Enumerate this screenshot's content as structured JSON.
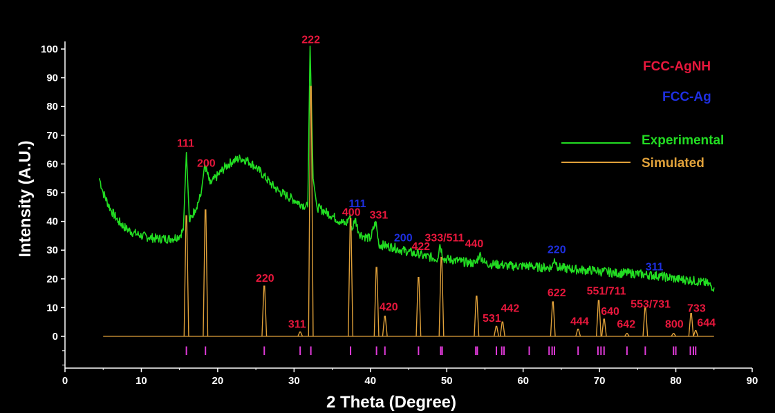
{
  "chart_data": {
    "type": "line",
    "xlabel": "2 Theta (Degree)",
    "ylabel": "Intensity (A.U.)",
    "xlim": [
      0,
      90
    ],
    "ylim": [
      -11,
      100
    ],
    "x_ticks": [
      0,
      10,
      20,
      30,
      40,
      50,
      60,
      70,
      80,
      90
    ],
    "y_ticks": [
      0,
      10,
      20,
      30,
      40,
      50,
      60,
      70,
      80,
      90,
      100
    ],
    "grid": false,
    "legend": {
      "placement": "right",
      "phases": [
        {
          "label": "FCC-AgNH",
          "color": "#e8173c"
        },
        {
          "label": "FCC-Ag",
          "color": "#1e2fe0"
        }
      ],
      "lines": [
        {
          "label": "Experimental",
          "color": "#22dd22"
        },
        {
          "label": "Simulated",
          "color": "#e0a13a"
        }
      ]
    },
    "series": [
      {
        "name": "Experimental",
        "color": "#22dd22",
        "x": [
          4.5,
          5,
          6,
          7,
          8,
          9,
          10,
          11,
          12,
          13,
          14,
          15,
          15.5,
          15.9,
          16.3,
          17,
          17.8,
          18.3,
          19,
          20,
          21,
          22,
          23,
          24,
          25,
          26,
          27,
          28,
          29,
          30,
          31,
          31.8,
          32.1,
          32.5,
          33,
          34,
          35,
          36,
          36.8,
          37.3,
          37.6,
          38,
          38.5,
          39,
          40,
          40.7,
          41.1,
          42,
          43,
          44,
          45,
          46,
          46.3,
          46.8,
          48,
          48.8,
          49.1,
          49.6,
          51,
          52,
          53,
          53.8,
          54.3,
          55,
          56,
          57,
          58,
          59,
          60,
          61,
          62,
          63,
          63.8,
          64.1,
          64.6,
          66,
          68,
          69.5,
          70,
          71,
          72,
          74,
          76,
          78,
          80,
          82,
          84,
          85
        ],
        "y": [
          55,
          50,
          44,
          40,
          37.5,
          36,
          35,
          34.5,
          34,
          34,
          34,
          35,
          37,
          64,
          40,
          44,
          49,
          60,
          53,
          56,
          59,
          61,
          62,
          61,
          59,
          56,
          53,
          50.5,
          49,
          47.5,
          46,
          45,
          101,
          55,
          45,
          43.5,
          42,
          40,
          39,
          42,
          37,
          41,
          36,
          35,
          34,
          40,
          32,
          31.5,
          31,
          30,
          29.5,
          28.5,
          29,
          28,
          27.5,
          27,
          32,
          27,
          26.5,
          26,
          25.5,
          25.5,
          28.5,
          25.5,
          25,
          25,
          24.5,
          24.5,
          24.5,
          24.5,
          24,
          24,
          24,
          27,
          24,
          23.5,
          23,
          23,
          22.5,
          22.5,
          22,
          22,
          21.5,
          21,
          20,
          19.5,
          18.5,
          17
        ]
      },
      {
        "name": "Simulated",
        "color": "#e0a13a",
        "baseline": 0,
        "x": [
          15.9,
          18.4,
          26.1,
          30.8,
          32.2,
          37.4,
          40.8,
          41.9,
          46.3,
          49.3,
          53.9,
          56.5,
          57.3,
          63.9,
          67.2,
          69.9,
          70.6,
          73.6,
          76.0,
          79.7,
          82.0,
          82.6
        ],
        "y": [
          42,
          44,
          17.5,
          1.5,
          87,
          41,
          24,
          7,
          20.5,
          27.5,
          14,
          3.5,
          5,
          12,
          2.5,
          12.5,
          6,
          1,
          10,
          1,
          8,
          2
        ]
      }
    ],
    "tick_mark_positions": [
      15.9,
      18.4,
      26.1,
      30.8,
      32.2,
      37.4,
      40.8,
      41.9,
      46.3,
      49.2,
      49.4,
      53.8,
      54.0,
      56.5,
      57.2,
      57.5,
      60.8,
      63.4,
      63.8,
      64.1,
      67.2,
      69.8,
      70.2,
      70.6,
      73.6,
      76.0,
      79.7,
      80.0,
      81.9,
      82.3,
      82.6
    ],
    "tick_mark_color": "#e03ad9",
    "peak_labels": [
      {
        "text": "111",
        "x": 15.8,
        "y": 66,
        "phase": "FCC-AgNH"
      },
      {
        "text": "200",
        "x": 18.5,
        "y": 59,
        "phase": "FCC-AgNH"
      },
      {
        "text": "222",
        "x": 32.2,
        "y": 102,
        "phase": "FCC-AgNH"
      },
      {
        "text": "220",
        "x": 26.2,
        "y": 19,
        "phase": "FCC-AgNH"
      },
      {
        "text": "311",
        "x": 30.4,
        "y": 3,
        "phase": "FCC-AgNH"
      },
      {
        "text": "400",
        "x": 37.5,
        "y": 42,
        "phase": "FCC-AgNH"
      },
      {
        "text": "331",
        "x": 41.1,
        "y": 41,
        "phase": "FCC-AgNH"
      },
      {
        "text": "420",
        "x": 42.4,
        "y": 9,
        "phase": "FCC-AgNH"
      },
      {
        "text": "422",
        "x": 46.6,
        "y": 30,
        "phase": "FCC-AgNH"
      },
      {
        "text": "333/511",
        "x": 49.7,
        "y": 33,
        "phase": "FCC-AgNH"
      },
      {
        "text": "440",
        "x": 53.6,
        "y": 31,
        "phase": "FCC-AgNH"
      },
      {
        "text": "531",
        "x": 55.9,
        "y": 5,
        "phase": "FCC-AgNH"
      },
      {
        "text": "442",
        "x": 58.3,
        "y": 8.5,
        "phase": "FCC-AgNH"
      },
      {
        "text": "622",
        "x": 64.4,
        "y": 14,
        "phase": "FCC-AgNH"
      },
      {
        "text": "444",
        "x": 67.4,
        "y": 4,
        "phase": "FCC-AgNH"
      },
      {
        "text": "551/711",
        "x": 70.9,
        "y": 14.5,
        "phase": "FCC-AgNH"
      },
      {
        "text": "640",
        "x": 71.4,
        "y": 7.5,
        "phase": "FCC-AgNH"
      },
      {
        "text": "642",
        "x": 73.5,
        "y": 3,
        "phase": "FCC-AgNH"
      },
      {
        "text": "553/731",
        "x": 76.7,
        "y": 10,
        "phase": "FCC-AgNH"
      },
      {
        "text": "800",
        "x": 79.8,
        "y": 3,
        "phase": "FCC-AgNH"
      },
      {
        "text": "733",
        "x": 82.7,
        "y": 8.5,
        "phase": "FCC-AgNH"
      },
      {
        "text": "644",
        "x": 84.0,
        "y": 3.5,
        "phase": "FCC-AgNH"
      },
      {
        "text": "111",
        "x": 38.3,
        "y": 45,
        "phase": "FCC-Ag"
      },
      {
        "text": "200",
        "x": 44.3,
        "y": 33,
        "phase": "FCC-Ag"
      },
      {
        "text": "220",
        "x": 64.4,
        "y": 29,
        "phase": "FCC-Ag"
      },
      {
        "text": "311",
        "x": 77.2,
        "y": 23,
        "phase": "FCC-Ag"
      }
    ]
  }
}
